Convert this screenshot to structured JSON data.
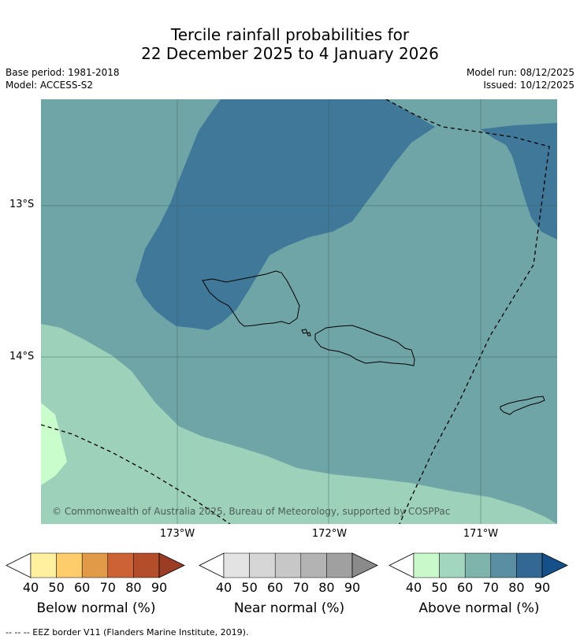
{
  "title": {
    "line1": "Tercile rainfall probabilities for",
    "line2": "22 December 2025 to 4 January 2026"
  },
  "meta": {
    "base_period": "Base period: 1981-2018",
    "model": "Model: ACCESS-S2",
    "model_run": "Model run: 08/12/2025",
    "issued": "Issued: 10/12/2025"
  },
  "map": {
    "lat_labels": [
      "13°S",
      "14°S"
    ],
    "lon_labels": [
      "173°W",
      "172°W",
      "171°W"
    ],
    "copyright": "© Commonwealth of Australia 2025, Bureau of Meteorology, supported by COSPPac",
    "colors": {
      "above_50": "#9dd1b9",
      "above_60": "#6fa5a7",
      "above_70": "#6fa5a7",
      "above_80": "#3f7898",
      "above_40": "#c9fdcc"
    }
  },
  "legend": {
    "ticks": [
      "40",
      "50",
      "60",
      "70",
      "80",
      "90"
    ],
    "below": {
      "label": "Below normal (%)",
      "colors": [
        "#fff0a0",
        "#fecd6b",
        "#e19a48",
        "#cd6334",
        "#b44e2a",
        "#9b3c24"
      ]
    },
    "near": {
      "label": "Near normal (%)",
      "colors": [
        "#e3e3e3",
        "#d6d6d6",
        "#c7c7c7",
        "#b3b3b3",
        "#a0a0a0",
        "#8a8a8a"
      ]
    },
    "above": {
      "label": "Above normal (%)",
      "colors": [
        "#c9f8cb",
        "#a2d6bf",
        "#7fb4ad",
        "#5a8ea3",
        "#346894",
        "#15508a"
      ]
    }
  },
  "footnote": "--  --  -- EEZ border V11 (Flanders Marine Institute, 2019)."
}
